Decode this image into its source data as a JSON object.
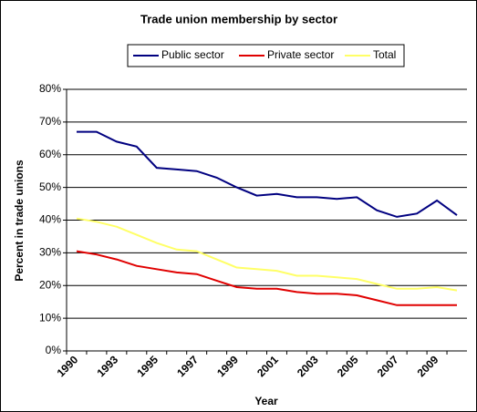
{
  "chart_data": {
    "type": "line",
    "title": "Trade union membership by sector",
    "x_label": "Year",
    "y_label": "Percent in trade unions",
    "categories": [
      "1990",
      null,
      "1993",
      null,
      "1995",
      null,
      "1997",
      null,
      "1999",
      null,
      "2001",
      null,
      "2003",
      null,
      "2005",
      null,
      "2007",
      null,
      "2009",
      null
    ],
    "series": [
      {
        "name": "Public sector",
        "color": "#000080",
        "values": [
          67,
          67,
          64,
          62.5,
          56,
          55.5,
          55,
          53,
          50,
          47.5,
          48,
          47,
          47,
          46.5,
          47,
          43,
          41,
          42,
          46,
          41.5
        ]
      },
      {
        "name": "Private sector",
        "color": "#e00000",
        "values": [
          30.5,
          29.5,
          28,
          26,
          25,
          24,
          23.5,
          21.5,
          19.5,
          19,
          19,
          18,
          17.5,
          17.5,
          17,
          15.5,
          14,
          14,
          14,
          14
        ]
      },
      {
        "name": "Total",
        "color": "#ffff66",
        "values": [
          40.5,
          39.5,
          38,
          35.5,
          33,
          31,
          30.5,
          28,
          25.5,
          25,
          24.5,
          23,
          23,
          22.5,
          22,
          20.5,
          19,
          19,
          19.5,
          18.5
        ]
      }
    ],
    "ylim": [
      0,
      80
    ],
    "yticks": [
      {
        "value": 0,
        "label": "0%"
      },
      {
        "value": 10,
        "label": "10%"
      },
      {
        "value": 20,
        "label": "20%"
      },
      {
        "value": 30,
        "label": "30%"
      },
      {
        "value": 40,
        "label": "40%"
      },
      {
        "value": 50,
        "label": "50%"
      },
      {
        "value": 60,
        "label": "60%"
      },
      {
        "value": 70,
        "label": "70%"
      },
      {
        "value": 80,
        "label": "80%"
      }
    ],
    "grid": true,
    "legend": "top"
  }
}
